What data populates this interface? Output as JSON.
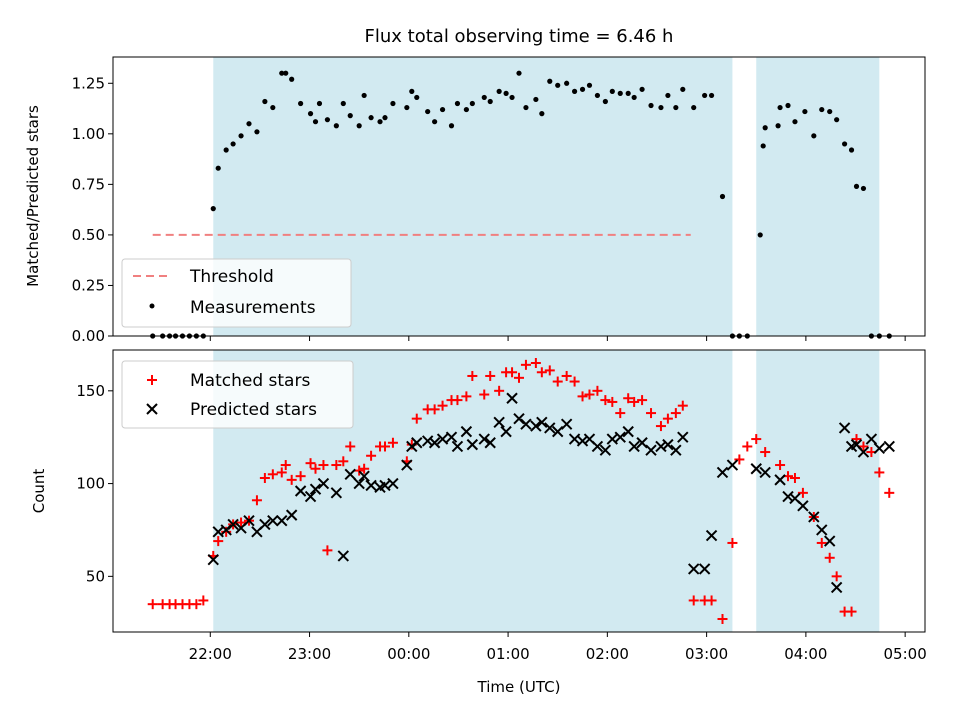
{
  "chart_data": {
    "type": "scatter",
    "title": "Flux total observing time = 6.46 h",
    "xlabel": "Time (UTC)",
    "x_unit": "hours (UTC)",
    "x_range": [
      -0.98,
      7.2
    ],
    "x_ticks": [
      {
        "value": 0,
        "label": "22:00"
      },
      {
        "value": 1,
        "label": "23:00"
      },
      {
        "value": 2,
        "label": "00:00"
      },
      {
        "value": 3,
        "label": "01:00"
      },
      {
        "value": 4,
        "label": "02:00"
      },
      {
        "value": 5,
        "label": "03:00"
      },
      {
        "value": 6,
        "label": "04:00"
      },
      {
        "value": 7,
        "label": "05:00"
      }
    ],
    "shaded_intervals": [
      {
        "start": 0.03,
        "end": 5.26
      },
      {
        "start": 5.5,
        "end": 6.74
      }
    ],
    "shade_color": "#add8e6",
    "panels": [
      {
        "ylabel": "Matched/Predicted stars",
        "ylim": [
          0,
          1.38
        ],
        "y_ticks": [
          {
            "value": 0,
            "label": "0.00"
          },
          {
            "value": 0.25,
            "label": "0.25"
          },
          {
            "value": 0.5,
            "label": "0.50"
          },
          {
            "value": 0.75,
            "label": "0.75"
          },
          {
            "value": 1.0,
            "label": "1.00"
          },
          {
            "value": 1.25,
            "label": "1.25"
          }
        ],
        "legend_position": "lower-left",
        "threshold": {
          "name": "Threshold",
          "value": 0.5,
          "x_from": -0.58,
          "x_to": 4.84,
          "color": "#f08080"
        },
        "series": [
          {
            "name": "Measurements",
            "marker": "dot",
            "color": "#000000",
            "x": [
              -0.58,
              -0.48,
              -0.41,
              -0.35,
              -0.28,
              -0.21,
              -0.14,
              -0.07,
              0.03,
              0.08,
              0.16,
              0.23,
              0.31,
              0.39,
              0.47,
              0.55,
              0.63,
              0.72,
              0.76,
              0.82,
              0.91,
              1.01,
              1.06,
              1.1,
              1.18,
              1.27,
              1.34,
              1.41,
              1.5,
              1.55,
              1.62,
              1.71,
              1.76,
              1.84,
              1.98,
              2.03,
              2.08,
              2.19,
              2.26,
              2.34,
              2.43,
              2.49,
              2.58,
              2.64,
              2.76,
              2.82,
              2.91,
              2.98,
              3.04,
              3.11,
              3.18,
              3.28,
              3.34,
              3.42,
              3.5,
              3.59,
              3.67,
              3.75,
              3.82,
              3.9,
              3.98,
              4.05,
              4.13,
              4.21,
              4.27,
              4.35,
              4.44,
              4.54,
              4.61,
              4.69,
              4.76,
              4.87,
              4.98,
              5.05,
              5.16,
              5.26,
              5.33,
              5.41,
              5.54,
              5.57,
              5.59,
              5.72,
              5.74,
              5.82,
              5.89,
              5.99,
              6.08,
              6.16,
              6.24,
              6.31,
              6.39,
              6.46,
              6.51,
              6.58,
              6.66,
              6.74,
              6.84
            ],
            "y": [
              0,
              0,
              0,
              0,
              0,
              0,
              0,
              0,
              0.63,
              0.83,
              0.92,
              0.95,
              0.99,
              1.05,
              1.01,
              1.16,
              1.13,
              1.3,
              1.3,
              1.27,
              1.15,
              1.1,
              1.06,
              1.15,
              1.07,
              1.04,
              1.15,
              1.09,
              1.04,
              1.19,
              1.08,
              1.06,
              1.08,
              1.15,
              1.13,
              1.21,
              1.18,
              1.11,
              1.06,
              1.12,
              1.04,
              1.15,
              1.12,
              1.15,
              1.18,
              1.16,
              1.21,
              1.2,
              1.18,
              1.3,
              1.13,
              1.17,
              1.1,
              1.26,
              1.24,
              1.25,
              1.21,
              1.22,
              1.24,
              1.19,
              1.16,
              1.21,
              1.2,
              1.2,
              1.18,
              1.22,
              1.14,
              1.13,
              1.19,
              1.13,
              1.22,
              1.13,
              1.19,
              1.19,
              0.69,
              0,
              0,
              0,
              0.5,
              0.94,
              1.03,
              1.04,
              1.13,
              1.14,
              1.06,
              1.11,
              0.99,
              1.12,
              1.11,
              1.07,
              0.95,
              0.92,
              0.74,
              0.73,
              0,
              0,
              0
            ]
          }
        ]
      },
      {
        "ylabel": "Count",
        "ylim": [
          20,
          172
        ],
        "y_ticks": [
          {
            "value": 50,
            "label": "50"
          },
          {
            "value": 100,
            "label": "100"
          },
          {
            "value": 150,
            "label": "150"
          }
        ],
        "legend_position": "upper-left",
        "series": [
          {
            "name": "Matched stars",
            "marker": "plus",
            "color": "#ff0000",
            "x": [
              -0.58,
              -0.48,
              -0.41,
              -0.35,
              -0.28,
              -0.21,
              -0.14,
              -0.07,
              0.03,
              0.08,
              0.16,
              0.23,
              0.31,
              0.39,
              0.47,
              0.55,
              0.63,
              0.72,
              0.76,
              0.82,
              0.91,
              1.01,
              1.06,
              1.14,
              1.18,
              1.27,
              1.34,
              1.41,
              1.5,
              1.55,
              1.62,
              1.71,
              1.76,
              1.84,
              1.98,
              2.03,
              2.08,
              2.19,
              2.26,
              2.34,
              2.43,
              2.49,
              2.58,
              2.64,
              2.76,
              2.82,
              2.91,
              2.98,
              3.04,
              3.11,
              3.18,
              3.28,
              3.34,
              3.42,
              3.5,
              3.59,
              3.67,
              3.75,
              3.82,
              3.9,
              3.98,
              4.05,
              4.13,
              4.21,
              4.27,
              4.35,
              4.44,
              4.54,
              4.61,
              4.69,
              4.76,
              4.87,
              4.98,
              5.05,
              5.16,
              5.26,
              5.33,
              5.41,
              5.5,
              5.59,
              5.74,
              5.82,
              5.89,
              5.97,
              6.08,
              6.16,
              6.24,
              6.31,
              6.39,
              6.46,
              6.51,
              6.58,
              6.66,
              6.74,
              6.84
            ],
            "y": [
              35,
              35,
              35,
              35,
              35,
              35,
              35,
              37,
              61,
              69,
              74,
              78,
              79,
              80,
              91,
              103,
              105,
              106,
              110,
              102,
              104,
              111,
              108,
              110,
              64,
              110,
              112,
              120,
              107,
              108,
              115,
              120,
              120,
              122,
              112,
              121,
              135,
              140,
              140,
              142,
              145,
              145,
              147,
              158,
              148,
              158,
              150,
              160,
              160,
              157,
              164,
              165,
              160,
              161,
              155,
              158,
              155,
              147,
              148,
              150,
              145,
              144,
              138,
              146,
              144,
              145,
              138,
              131,
              135,
              138,
              142,
              37,
              37,
              37,
              27,
              68,
              113,
              120,
              124,
              117,
              110,
              104,
              103,
              95,
              82,
              68,
              60,
              50,
              31,
              31,
              124,
              120,
              117,
              106,
              95
            ],
            "y_note": "values as plotted per x"
          },
          {
            "name": "Predicted stars",
            "marker": "x",
            "color": "#000000",
            "x": [
              0.03,
              0.08,
              0.16,
              0.23,
              0.31,
              0.39,
              0.47,
              0.55,
              0.63,
              0.72,
              0.82,
              0.91,
              1.01,
              1.06,
              1.14,
              1.27,
              1.34,
              1.41,
              1.5,
              1.55,
              1.62,
              1.71,
              1.76,
              1.84,
              1.98,
              2.03,
              2.08,
              2.19,
              2.26,
              2.34,
              2.43,
              2.49,
              2.58,
              2.64,
              2.76,
              2.82,
              2.91,
              2.98,
              3.04,
              3.11,
              3.18,
              3.28,
              3.34,
              3.42,
              3.5,
              3.59,
              3.67,
              3.75,
              3.82,
              3.9,
              3.98,
              4.05,
              4.13,
              4.21,
              4.27,
              4.35,
              4.44,
              4.54,
              4.61,
              4.69,
              4.76,
              4.87,
              4.98,
              5.05,
              5.16,
              5.26,
              5.5,
              5.59,
              5.74,
              5.82,
              5.89,
              5.97,
              6.08,
              6.16,
              6.24,
              6.31,
              6.39,
              6.46,
              6.51,
              6.58,
              6.66,
              6.74,
              6.84
            ],
            "y": [
              59,
              74,
              75,
              78,
              76,
              80,
              74,
              78,
              80,
              80,
              83,
              96,
              93,
              97,
              100,
              95,
              61,
              105,
              100,
              104,
              99,
              98,
              99,
              100,
              110,
              120,
              122,
              123,
              122,
              124,
              125,
              120,
              128,
              121,
              124,
              122,
              133,
              128,
              146,
              135,
              132,
              131,
              133,
              130,
              128,
              132,
              124,
              123,
              124,
              120,
              118,
              124,
              125,
              128,
              120,
              122,
              118,
              120,
              121,
              118,
              125,
              54,
              54,
              72,
              106,
              110,
              108,
              106,
              102,
              93,
              92,
              88,
              82,
              75,
              69,
              44,
              130,
              120,
              121,
              117,
              124,
              119,
              120
            ],
            "y_note": "values as plotted per x"
          }
        ]
      }
    ]
  }
}
